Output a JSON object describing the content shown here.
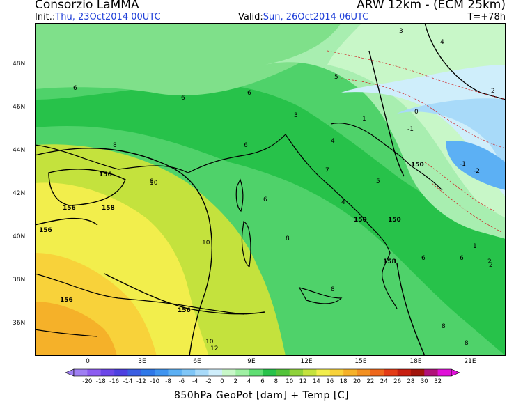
{
  "header": {
    "organization": "Consorzio LaMMA",
    "model": "ARW 12km - (ECM 25km)",
    "init_label": "Init.:",
    "init_value": "Thu, 23Oct2014 00UTC",
    "valid_label": "Valid:",
    "valid_value": "Sun, 26Oct2014 06UTC",
    "forecast_step": "T=+78h"
  },
  "map": {
    "lat_labels": [
      "48N",
      "46N",
      "44N",
      "42N",
      "40N",
      "38N",
      "36N"
    ],
    "lon_labels": [
      "0",
      "3E",
      "6E",
      "9E",
      "12E",
      "15E",
      "18E",
      "21E"
    ],
    "contour_labels": [
      "156",
      "156",
      "158",
      "156",
      "156",
      "156",
      "150",
      "150",
      "150",
      "158"
    ],
    "temp_labels": [
      "6",
      "6",
      "8",
      "8",
      "6",
      "6",
      "6",
      "8",
      "10",
      "10",
      "12",
      "10",
      "8",
      "4",
      "3",
      "1",
      "-1",
      "0",
      "2",
      "-2",
      "-1",
      "4",
      "5",
      "6",
      "8",
      "4",
      "2",
      "3",
      "1",
      "7",
      "2",
      "6",
      "5",
      "8"
    ]
  },
  "colorbar": {
    "labels": [
      "-20",
      "-18",
      "-16",
      "-14",
      "-12",
      "-10",
      "-8",
      "-6",
      "-4",
      "-2",
      "0",
      "2",
      "4",
      "6",
      "8",
      "10",
      "12",
      "14",
      "16",
      "18",
      "20",
      "22",
      "24",
      "26",
      "28",
      "30",
      "32"
    ],
    "colors": [
      "#9f7ff3",
      "#8c5cf0",
      "#6b46e8",
      "#4d40e0",
      "#3a5ee2",
      "#2f78e8",
      "#3f94f0",
      "#5cb0f4",
      "#7fc6f7",
      "#a8daf9",
      "#cfeefb",
      "#c8f7c8",
      "#9ff0a3",
      "#5fde73",
      "#27c24a",
      "#52c33a",
      "#8fd23a",
      "#c4e23d",
      "#f2ee4c",
      "#f8d23a",
      "#f5b129",
      "#f29021",
      "#ee671b",
      "#e33b15",
      "#c71e10",
      "#a1150c",
      "#b0127a",
      "#e010d8"
    ]
  },
  "footer": "850hPa GeoPot [dam] + Temp [C]"
}
